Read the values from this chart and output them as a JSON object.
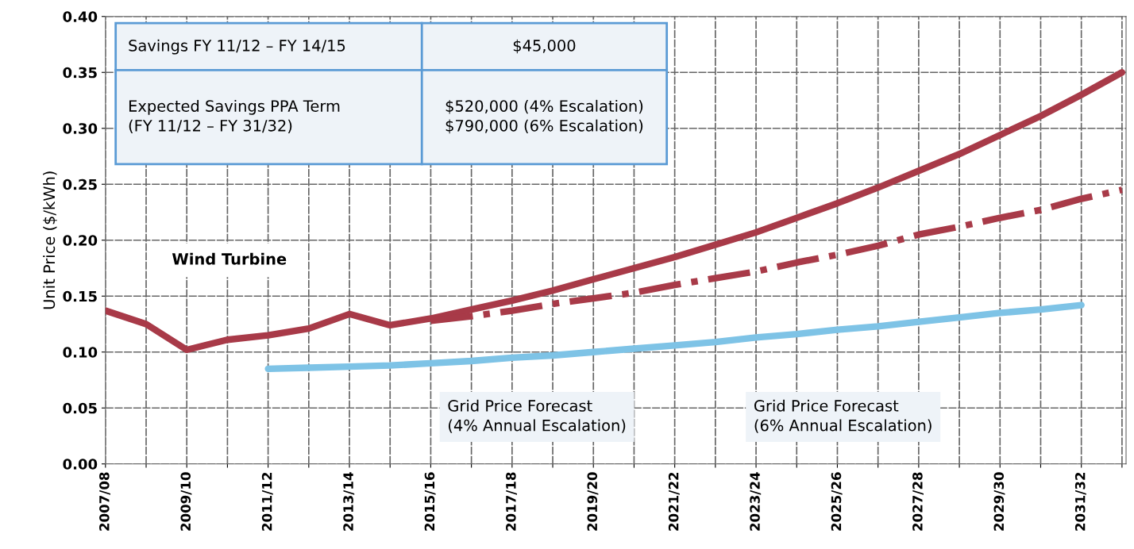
{
  "chart_data": {
    "type": "line",
    "ylabel": "Unit Price ($/kWh)",
    "categories": [
      "2007/08",
      null,
      "2009/10",
      null,
      "2011/12",
      null,
      "2013/14",
      null,
      "2015/16",
      null,
      "2017/18",
      null,
      "2019/20",
      null,
      "2021/22",
      null,
      "2023/24",
      null,
      "2025/26",
      null,
      "2027/28",
      null,
      "2029/30",
      null,
      "2031/32",
      null
    ],
    "series": [
      {
        "color": "#a83a48",
        "line_style": "solid",
        "values": [
          0.137,
          0.125,
          0.102,
          0.111,
          0.115,
          0.121,
          0.134,
          0.124,
          0.13,
          0.138,
          0.146,
          0.155,
          0.165,
          0.175,
          0.185,
          0.196,
          0.207,
          0.22,
          0.233,
          0.247,
          0.262,
          0.277,
          0.294,
          0.311,
          0.33,
          0.35
        ]
      },
      {
        "color": "#a83a48",
        "line_style": "dashed",
        "values": [
          null,
          null,
          null,
          null,
          null,
          null,
          null,
          null,
          0.128,
          0.132,
          0.137,
          0.143,
          0.148,
          0.153,
          0.16,
          0.166,
          0.172,
          0.18,
          0.187,
          0.195,
          0.205,
          0.212,
          0.22,
          0.227,
          0.237,
          0.245
        ]
      },
      {
        "color": "#7ec3e6",
        "line_style": "solid",
        "values": [
          null,
          null,
          null,
          null,
          0.085,
          0.086,
          0.087,
          0.088,
          0.09,
          0.092,
          0.095,
          0.097,
          0.1,
          0.103,
          0.106,
          0.109,
          0.113,
          0.116,
          0.12,
          0.123,
          0.127,
          0.131,
          0.135,
          0.138,
          0.142,
          null
        ]
      }
    ],
    "ylim": [
      0,
      0.4
    ],
    "yticks": [
      {
        "value": 0,
        "label": "0.00"
      },
      {
        "value": 0.05,
        "label": "0.05"
      },
      {
        "value": 0.1,
        "label": "0.10"
      },
      {
        "value": 0.15,
        "label": "0.15"
      },
      {
        "value": 0.2,
        "label": "0.20"
      },
      {
        "value": 0.25,
        "label": "0.25"
      },
      {
        "value": 0.3,
        "label": "0.30"
      },
      {
        "value": 0.35,
        "label": "0.35"
      },
      {
        "value": 0.4,
        "label": "0.40"
      }
    ],
    "grid": true,
    "annotations": [
      "Savings FY 11/12 – FY 14/15",
      "$45,000",
      "Expected Savings PPA Term\n(FY 11/12 – FY 31/32)",
      "$520,000 (4% Escalation)\n$790,000 (6% Escalation)",
      "Wind Turbine",
      "Grid Price Forecast\n(4% Annual Escalation)",
      "Grid Price Forecast\n(6% Annual Escalation)"
    ]
  }
}
